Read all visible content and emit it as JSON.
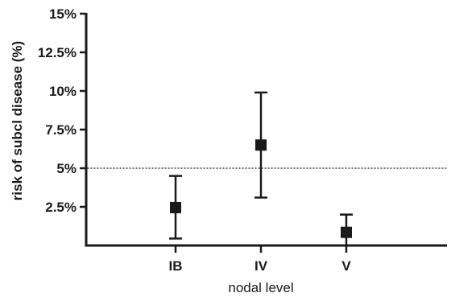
{
  "chart_data": {
    "type": "scatter",
    "title": "",
    "xlabel": "nodal level",
    "ylabel": "risk of subcl disease (%)",
    "categories": [
      "IB",
      "IV",
      "V"
    ],
    "x_positions": [
      1,
      2,
      3
    ],
    "xlim": [
      0,
      4
    ],
    "ylim": [
      0,
      15
    ],
    "y_ticks": [
      2.5,
      5,
      7.5,
      10,
      12.5,
      15
    ],
    "y_tick_labels": [
      "2.5%",
      "5%",
      "7.5%",
      "10%",
      "12.5%",
      "15%"
    ],
    "series": [
      {
        "values": [
          2.45,
          6.5,
          0.85
        ],
        "error_low": [
          0.45,
          3.1,
          0.0
        ],
        "error_high": [
          4.5,
          9.9,
          2.0
        ],
        "marker": "square",
        "color": "#1a1a1a"
      }
    ],
    "reference_line": {
      "y": 5,
      "style": "dotted"
    },
    "grid": false,
    "legend": "none"
  }
}
